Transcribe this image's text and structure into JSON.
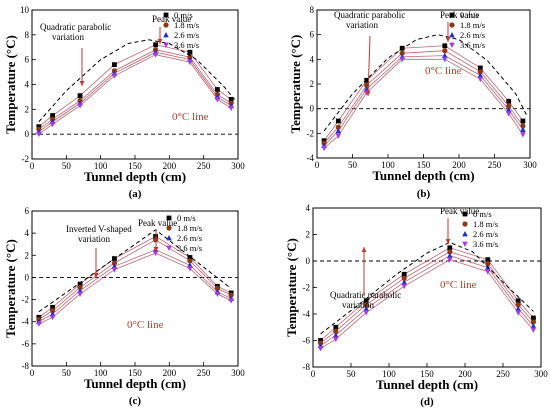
{
  "series_names": [
    "0 m/s",
    "1.8 m/s",
    "2.6 m/s",
    "3.6 m/s"
  ],
  "series_colors": [
    "#000000",
    "#8b3a10",
    "#1f2fd0",
    "#a43ce0"
  ],
  "series_markers": [
    "square",
    "circle",
    "triangle-up",
    "triangle-down"
  ],
  "curve_color": "#b44a5a",
  "zero_line_text_color": "#c0392b",
  "chart_data": [
    {
      "type": "line",
      "panel_label": "(a)",
      "xlabel": "Tunnel depth (cm)",
      "ylabel": "Temperature (°C)",
      "xlim": [
        0,
        300
      ],
      "ylim": [
        -2,
        10
      ],
      "xticks": [
        0,
        50,
        100,
        150,
        200,
        250,
        300
      ],
      "yticks": [
        -2,
        0,
        2,
        4,
        6,
        8,
        10
      ],
      "grid": false,
      "legend": "top-right",
      "x": [
        10,
        30,
        70,
        120,
        180,
        230,
        270,
        290
      ],
      "series": [
        {
          "name": "0 m/s",
          "values": [
            0.6,
            1.5,
            3.1,
            5.6,
            7.2,
            6.6,
            3.6,
            2.8
          ]
        },
        {
          "name": "1.8 m/s",
          "values": [
            0.4,
            1.2,
            2.7,
            5.1,
            6.8,
            6.2,
            3.2,
            2.5
          ]
        },
        {
          "name": "2.6 m/s",
          "values": [
            0.2,
            1.0,
            2.5,
            4.9,
            6.6,
            6.0,
            3.0,
            2.3
          ]
        },
        {
          "name": "3.6 m/s",
          "values": [
            0.0,
            0.8,
            2.3,
            4.7,
            6.4,
            5.8,
            2.8,
            2.1
          ]
        }
      ],
      "envelope": {
        "x": [
          10,
          50,
          100,
          140,
          170,
          200,
          240,
          280,
          295
        ],
        "y": [
          1.0,
          3.5,
          6.0,
          7.3,
          7.6,
          7.3,
          6.0,
          3.8,
          2.8
        ]
      },
      "annotations": {
        "variation": "Quadratic parabolic\nvariation",
        "peak": "Peak value",
        "zero_line": "0°C line"
      }
    },
    {
      "type": "line",
      "panel_label": "(b)",
      "xlabel": "Tunnel depth (cm)",
      "ylabel": "Temperature (°C)",
      "xlim": [
        0,
        300
      ],
      "ylim": [
        -4,
        8
      ],
      "xticks": [
        0,
        50,
        100,
        150,
        200,
        250,
        300
      ],
      "yticks": [
        -4,
        -2,
        0,
        2,
        4,
        6,
        8
      ],
      "grid": false,
      "legend": "top-right",
      "x": [
        10,
        30,
        70,
        120,
        180,
        230,
        270,
        290
      ],
      "series": [
        {
          "name": "0 m/s",
          "values": [
            -2.6,
            -1.0,
            2.3,
            4.9,
            5.1,
            3.3,
            0.6,
            -1.0
          ]
        },
        {
          "name": "1.8 m/s",
          "values": [
            -2.8,
            -1.5,
            1.9,
            4.5,
            4.7,
            3.0,
            0.2,
            -1.4
          ]
        },
        {
          "name": "2.6 m/s",
          "values": [
            -3.0,
            -1.8,
            1.6,
            4.2,
            4.3,
            2.7,
            -0.1,
            -1.7
          ]
        },
        {
          "name": "3.6 m/s",
          "values": [
            -3.2,
            -2.2,
            1.3,
            4.0,
            4.0,
            2.4,
            -0.4,
            -2.1
          ]
        }
      ],
      "envelope": {
        "x": [
          10,
          50,
          100,
          140,
          170,
          200,
          240,
          280,
          295
        ],
        "y": [
          -1.8,
          1.2,
          4.1,
          5.6,
          6.0,
          5.6,
          3.9,
          1.2,
          -0.5
        ]
      },
      "annotations": {
        "variation": "Quadratic parabolic\nvariation",
        "peak": "Peak value",
        "zero_line": "0°C line"
      }
    },
    {
      "type": "line",
      "panel_label": "(c)",
      "xlabel": "Tunnel depth (cm)",
      "ylabel": "Temperature (°C)",
      "xlim": [
        0,
        300
      ],
      "ylim": [
        -8,
        6
      ],
      "xticks": [
        0,
        50,
        100,
        150,
        200,
        250,
        300
      ],
      "yticks": [
        -8,
        -6,
        -4,
        -2,
        0,
        2,
        4,
        6
      ],
      "grid": false,
      "legend": "top-right",
      "x": [
        10,
        30,
        70,
        120,
        180,
        230,
        270,
        290
      ],
      "series": [
        {
          "name": "0 m/s",
          "values": [
            -3.6,
            -2.7,
            -0.6,
            1.7,
            3.7,
            1.8,
            -0.8,
            -1.4
          ]
        },
        {
          "name": "1.8 m/s",
          "values": [
            -3.8,
            -3.0,
            -0.9,
            1.3,
            3.4,
            1.5,
            -1.0,
            -1.6
          ]
        },
        {
          "name": "2.6 m/s",
          "values": [
            -4.0,
            -3.3,
            -1.2,
            1.0,
            2.5,
            1.1,
            -1.3,
            -1.9
          ]
        },
        {
          "name": "3.6 m/s",
          "values": [
            -4.2,
            -3.6,
            -1.5,
            0.7,
            2.2,
            0.8,
            -1.5,
            -2.1
          ]
        }
      ],
      "envelope": {
        "x": [
          10,
          180,
          290
        ],
        "y": [
          -3.1,
          4.3,
          -1.0
        ]
      },
      "annotations": {
        "variation": "Inverted V-shaped\nvariation",
        "peak": "Peak value",
        "zero_line": "0°C line"
      }
    },
    {
      "type": "line",
      "panel_label": "(d)",
      "xlabel": "Tunnel depth (cm)",
      "ylabel": "Temperature (°C)",
      "xlim": [
        0,
        300
      ],
      "ylim": [
        -8,
        4
      ],
      "xticks": [
        0,
        50,
        100,
        150,
        200,
        250,
        300
      ],
      "yticks": [
        -8,
        -6,
        -4,
        -2,
        0,
        2,
        4
      ],
      "grid": false,
      "legend": "top-right",
      "x": [
        10,
        30,
        70,
        120,
        180,
        230,
        270,
        290
      ],
      "series": [
        {
          "name": "0 m/s",
          "values": [
            -6.0,
            -5.0,
            -3.0,
            -1.0,
            1.0,
            0.1,
            -3.0,
            -4.3
          ]
        },
        {
          "name": "1.8 m/s",
          "values": [
            -6.2,
            -5.3,
            -3.3,
            -1.3,
            0.7,
            -0.2,
            -3.3,
            -4.6
          ]
        },
        {
          "name": "2.6 m/s",
          "values": [
            -6.4,
            -5.6,
            -3.6,
            -1.6,
            0.4,
            -0.5,
            -3.6,
            -4.9
          ]
        },
        {
          "name": "3.6 m/s",
          "values": [
            -6.6,
            -5.9,
            -3.9,
            -1.9,
            0.1,
            -0.8,
            -3.9,
            -5.2
          ]
        }
      ],
      "envelope": {
        "x": [
          10,
          60,
          110,
          150,
          180,
          210,
          250,
          290
        ],
        "y": [
          -5.5,
          -3.3,
          -1.0,
          0.6,
          1.4,
          0.7,
          -1.6,
          -3.8
        ]
      },
      "annotations": {
        "variation": "Quadratic parabolic\nvariation",
        "peak": "Peak value",
        "zero_line": "0°C line"
      }
    }
  ]
}
